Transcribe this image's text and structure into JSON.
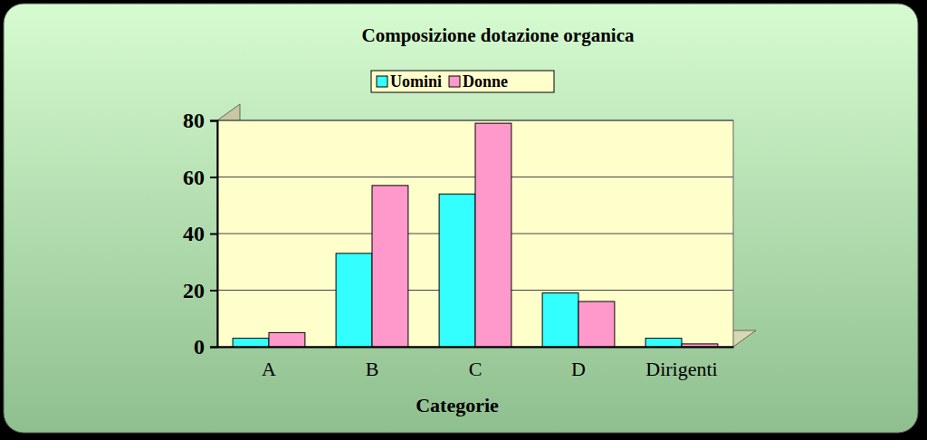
{
  "chart_data": {
    "type": "bar",
    "title": "Composizione dotazione organica",
    "x_label": "Categorie",
    "categories": [
      "A",
      "B",
      "C",
      "D",
      "Dirigenti"
    ],
    "series": [
      {
        "name": "Uomini",
        "color": "#33ffff",
        "values": [
          3,
          33,
          54,
          19,
          3
        ]
      },
      {
        "name": "Donne",
        "color": "#ff99cc",
        "values": [
          5,
          57,
          79,
          16,
          1
        ]
      }
    ],
    "ylim": [
      0,
      80
    ],
    "yticks": [
      0,
      20,
      40,
      60,
      80
    ],
    "grid": true,
    "legend": "top"
  }
}
